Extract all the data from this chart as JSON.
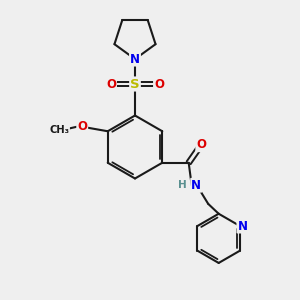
{
  "bg_color": "#efefef",
  "bond_color": "#1a1a1a",
  "atom_colors": {
    "N": "#0000ee",
    "O": "#dd0000",
    "S": "#bbbb00",
    "H": "#5a9090",
    "C": "#1a1a1a"
  },
  "font_size_atom": 8.5
}
